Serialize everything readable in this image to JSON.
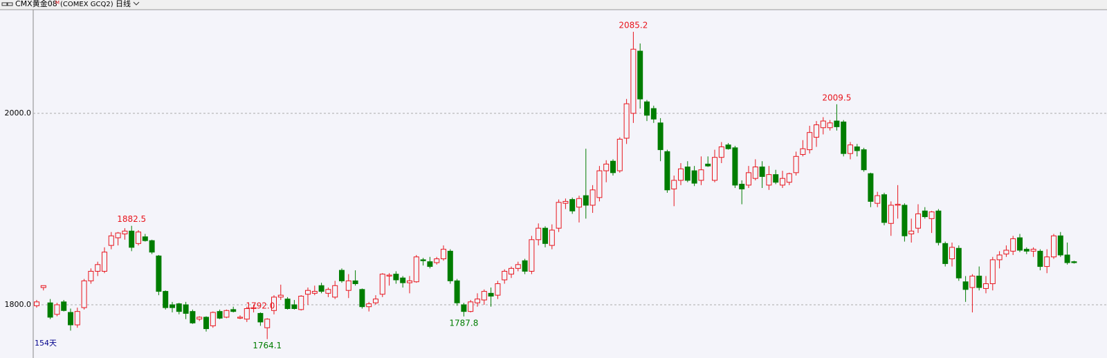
{
  "header": {
    "symbol": "CMX黄金08",
    "superscript": "M",
    "code": "(COMEX GCQ2)",
    "period": "日线"
  },
  "chart_data": {
    "type": "candlestick",
    "days_label": "154天",
    "ylim": [
      1751.6,
      2108.3
    ],
    "yticks": [
      {
        "value": 1800,
        "label": "1800.0"
      },
      {
        "value": 2000,
        "label": "2000.0"
      }
    ],
    "grid": true,
    "up_color": "#e8141c",
    "down_color": "#007d00",
    "annotations": [
      {
        "label": "1882.5",
        "value": 1882.5
      },
      {
        "label": "1764.1",
        "value": 1764.1
      },
      {
        "label": "1787.8",
        "value": 1787.8
      },
      {
        "label": "2085.2",
        "value": 2085.2
      },
      {
        "label": "2009.5",
        "value": 2009.5
      },
      {
        "label": "1792.0",
        "value": 1792.0
      }
    ],
    "ohlc": [
      [
        1799,
        1805,
        1797,
        1803
      ],
      [
        1818,
        1820,
        1815,
        1820
      ],
      [
        1802,
        1806,
        1785,
        1787
      ],
      [
        1790,
        1802,
        1788,
        1800
      ],
      [
        1803,
        1805,
        1793,
        1794
      ],
      [
        1792,
        1796,
        1773,
        1779
      ],
      [
        1779,
        1797,
        1776,
        1793
      ],
      [
        1797,
        1827,
        1795,
        1825
      ],
      [
        1825,
        1838,
        1822,
        1835
      ],
      [
        1835,
        1845,
        1830,
        1842
      ],
      [
        1835,
        1860,
        1833,
        1855
      ],
      [
        1862,
        1876,
        1858,
        1872
      ],
      [
        1870,
        1876,
        1862,
        1875
      ],
      [
        1874,
        1880,
        1868,
        1877
      ],
      [
        1877,
        1882.5,
        1856,
        1860
      ],
      [
        1864,
        1878,
        1862,
        1876
      ],
      [
        1871,
        1874,
        1866,
        1867
      ],
      [
        1867,
        1868,
        1853,
        1855
      ],
      [
        1851,
        1852,
        1810,
        1814
      ],
      [
        1814,
        1815,
        1795,
        1797
      ],
      [
        1800,
        1803,
        1792,
        1797
      ],
      [
        1801,
        1802,
        1790,
        1793
      ],
      [
        1800,
        1803,
        1785,
        1791
      ],
      [
        1793,
        1795,
        1780,
        1781
      ],
      [
        1785,
        1788,
        1783,
        1787
      ],
      [
        1787,
        1788,
        1772,
        1775
      ],
      [
        1778,
        1793,
        1776,
        1792
      ],
      [
        1793,
        1795,
        1785,
        1786
      ],
      [
        1787,
        1795,
        1786,
        1794
      ],
      [
        1795,
        1798,
        1792,
        1793
      ],
      [
        1786,
        1789,
        1785,
        1787
      ],
      [
        1785,
        1798,
        1782,
        1796
      ],
      [
        1796,
        1800,
        1792,
        1797
      ],
      [
        1791,
        1792,
        1778,
        1782
      ],
      [
        1776,
        1786,
        1764.1,
        1785
      ],
      [
        1794,
        1810,
        1790,
        1808
      ],
      [
        1808,
        1821,
        1805,
        1810
      ],
      [
        1806,
        1808,
        1795,
        1796
      ],
      [
        1800,
        1805,
        1795,
        1796
      ],
      [
        1795,
        1810,
        1794,
        1809
      ],
      [
        1811,
        1818,
        1800,
        1815
      ],
      [
        1812,
        1820,
        1810,
        1814
      ],
      [
        1820,
        1823,
        1812,
        1814
      ],
      [
        1812,
        1818,
        1808,
        1816
      ],
      [
        1808,
        1825,
        1806,
        1820
      ],
      [
        1836,
        1838,
        1823,
        1825
      ],
      [
        1815,
        1832,
        1807,
        1825
      ],
      [
        1825,
        1836,
        1820,
        1822
      ],
      [
        1816,
        1817,
        1796,
        1798
      ],
      [
        1798,
        1803,
        1793,
        1801
      ],
      [
        1802,
        1810,
        1800,
        1806
      ],
      [
        1811,
        1833,
        1808,
        1832
      ],
      [
        1830,
        1833,
        1820,
        1831
      ],
      [
        1832,
        1835,
        1822,
        1826
      ],
      [
        1828,
        1830,
        1818,
        1823
      ],
      [
        1823,
        1830,
        1812,
        1825
      ],
      [
        1824,
        1852,
        1823,
        1850
      ],
      [
        1847,
        1849,
        1841,
        1846
      ],
      [
        1845,
        1850,
        1838,
        1840
      ],
      [
        1844,
        1850,
        1842,
        1848
      ],
      [
        1848,
        1862,
        1846,
        1858
      ],
      [
        1856,
        1858,
        1822,
        1825
      ],
      [
        1825,
        1827,
        1799,
        1802
      ],
      [
        1800,
        1802,
        1787.8,
        1793
      ],
      [
        1793,
        1805,
        1792,
        1803
      ],
      [
        1802,
        1812,
        1798,
        1806
      ],
      [
        1805,
        1816,
        1800,
        1814
      ],
      [
        1812,
        1818,
        1798,
        1809
      ],
      [
        1810,
        1825,
        1806,
        1822
      ],
      [
        1826,
        1837,
        1822,
        1835
      ],
      [
        1832,
        1840,
        1828,
        1838
      ],
      [
        1838,
        1845,
        1835,
        1842
      ],
      [
        1846,
        1848,
        1832,
        1835
      ],
      [
        1835,
        1872,
        1832,
        1868
      ],
      [
        1868,
        1885,
        1862,
        1880
      ],
      [
        1880,
        1882,
        1860,
        1864
      ],
      [
        1862,
        1884,
        1858,
        1878
      ],
      [
        1880,
        1910,
        1876,
        1907
      ],
      [
        1906,
        1911,
        1900,
        1908
      ],
      [
        1910,
        1912,
        1895,
        1898
      ],
      [
        1902,
        1914,
        1886,
        1911
      ],
      [
        1914,
        1963,
        1890,
        1904
      ],
      [
        1904,
        1925,
        1896,
        1920
      ],
      [
        1912,
        1945,
        1908,
        1940
      ],
      [
        1940,
        1951,
        1928,
        1947
      ],
      [
        1950,
        1952,
        1935,
        1938
      ],
      [
        1940,
        1975,
        1938,
        1973
      ],
      [
        1974,
        2015,
        1968,
        2010
      ],
      [
        2000,
        2085.2,
        1990,
        2067
      ],
      [
        2065,
        2073,
        2005,
        2015
      ],
      [
        2012,
        2014,
        1992,
        1998
      ],
      [
        2005,
        2008,
        1990,
        1994
      ],
      [
        1990,
        1995,
        1950,
        1962
      ],
      [
        1960,
        1962,
        1917,
        1920
      ],
      [
        1921,
        1935,
        1903,
        1930
      ],
      [
        1930,
        1948,
        1925,
        1942
      ],
      [
        1944,
        1950,
        1928,
        1930
      ],
      [
        1940,
        1945,
        1924,
        1927
      ],
      [
        1930,
        1955,
        1925,
        1941
      ],
      [
        1947,
        1955,
        1944,
        1945
      ],
      [
        1930,
        1962,
        1928,
        1954
      ],
      [
        1954,
        1970,
        1948,
        1965
      ],
      [
        1967,
        1969,
        1962,
        1963
      ],
      [
        1964,
        1966,
        1922,
        1925
      ],
      [
        1926,
        1930,
        1905,
        1921
      ],
      [
        1925,
        1945,
        1922,
        1938
      ],
      [
        1932,
        1952,
        1930,
        1944
      ],
      [
        1944,
        1950,
        1922,
        1934
      ],
      [
        1925,
        1945,
        1920,
        1936
      ],
      [
        1936,
        1941,
        1926,
        1928
      ],
      [
        1925,
        1940,
        1922,
        1932
      ],
      [
        1928,
        1938,
        1925,
        1937
      ],
      [
        1938,
        1960,
        1935,
        1955
      ],
      [
        1957,
        1972,
        1955,
        1963
      ],
      [
        1962,
        1987,
        1958,
        1980
      ],
      [
        1975,
        1992,
        1965,
        1988
      ],
      [
        1985,
        1996,
        1978,
        1992
      ],
      [
        1985,
        1993,
        1982,
        1990
      ],
      [
        1992,
        2009.5,
        1982,
        1986
      ],
      [
        1991,
        1993,
        1955,
        1958
      ],
      [
        1958,
        1970,
        1952,
        1967
      ],
      [
        1965,
        1968,
        1955,
        1961
      ],
      [
        1962,
        1964,
        1939,
        1941
      ],
      [
        1937,
        1938,
        1902,
        1908
      ],
      [
        1906,
        1918,
        1902,
        1914
      ],
      [
        1915,
        1917,
        1883,
        1886
      ],
      [
        1885,
        1908,
        1872,
        1904
      ],
      [
        1904,
        1925,
        1890,
        1905
      ],
      [
        1904,
        1906,
        1866,
        1872
      ],
      [
        1874,
        1890,
        1865,
        1877
      ],
      [
        1880,
        1905,
        1875,
        1895
      ],
      [
        1898,
        1902,
        1890,
        1892
      ],
      [
        1890,
        1898,
        1875,
        1897
      ],
      [
        1898,
        1900,
        1862,
        1865
      ],
      [
        1864,
        1866,
        1840,
        1843
      ],
      [
        1848,
        1865,
        1840,
        1860
      ],
      [
        1859,
        1862,
        1825,
        1828
      ],
      [
        1824,
        1830,
        1803,
        1816
      ],
      [
        1818,
        1832,
        1792.0,
        1830
      ],
      [
        1830,
        1840,
        1815,
        1818
      ],
      [
        1817,
        1830,
        1812,
        1822
      ],
      [
        1822,
        1850,
        1815,
        1847
      ],
      [
        1847,
        1856,
        1838,
        1852
      ],
      [
        1853,
        1862,
        1850,
        1857
      ],
      [
        1856,
        1872,
        1852,
        1869
      ],
      [
        1870,
        1874,
        1855,
        1857
      ],
      [
        1858,
        1860,
        1853,
        1856
      ],
      [
        1856,
        1860,
        1850,
        1858
      ],
      [
        1856,
        1858,
        1836,
        1840
      ],
      [
        1840,
        1858,
        1833,
        1850
      ],
      [
        1850,
        1874,
        1848,
        1872
      ],
      [
        1872,
        1876,
        1850,
        1852
      ],
      [
        1852,
        1865,
        1842,
        1844
      ],
      [
        1845,
        1846,
        1843,
        1844
      ]
    ]
  }
}
